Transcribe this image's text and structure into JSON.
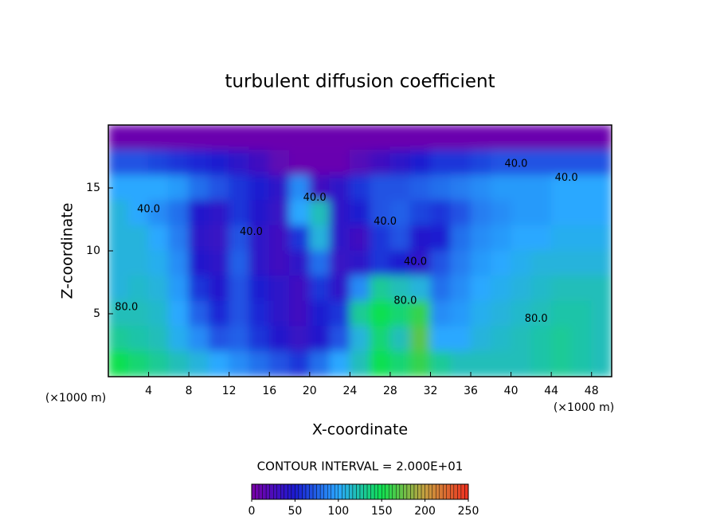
{
  "chart_data": {
    "type": "heatmap",
    "title": "turbulent diffusion coefficient",
    "xlabel": "X-coordinate",
    "ylabel": "Z-coordinate",
    "x_unit_left": "(×1000 m)",
    "x_unit_right": "(×1000 m)",
    "contour_interval": "CONTOUR INTERVAL = 2.000E+01",
    "xlim": [
      0,
      50
    ],
    "ylim": [
      0,
      20
    ],
    "xticks": [
      4,
      8,
      12,
      16,
      20,
      24,
      28,
      32,
      36,
      40,
      44,
      48
    ],
    "yticks": [
      5,
      10,
      15
    ],
    "x": [
      1,
      3,
      5,
      7,
      9,
      11,
      13,
      15,
      17,
      19,
      21,
      23,
      25,
      27,
      29,
      31,
      33,
      35,
      37,
      39,
      41,
      43,
      45,
      47,
      49
    ],
    "y": [
      19,
      17,
      15,
      13,
      11,
      9,
      7,
      5,
      3,
      1
    ],
    "z": [
      [
        8,
        8,
        8,
        8,
        8,
        8,
        8,
        8,
        8,
        8,
        8,
        8,
        8,
        8,
        8,
        8,
        8,
        8,
        8,
        8,
        8,
        8,
        8,
        8,
        8
      ],
      [
        70,
        70,
        65,
        60,
        55,
        50,
        40,
        30,
        15,
        10,
        10,
        10,
        20,
        30,
        40,
        50,
        60,
        60,
        65,
        70,
        70,
        70,
        70,
        70,
        70
      ],
      [
        100,
        100,
        100,
        95,
        80,
        70,
        60,
        50,
        40,
        90,
        30,
        40,
        60,
        70,
        70,
        75,
        80,
        85,
        90,
        95,
        95,
        95,
        100,
        100,
        100
      ],
      [
        110,
        100,
        90,
        80,
        45,
        40,
        60,
        45,
        35,
        100,
        120,
        40,
        50,
        70,
        75,
        65,
        60,
        70,
        85,
        90,
        95,
        95,
        100,
        100,
        100
      ],
      [
        110,
        110,
        100,
        85,
        40,
        35,
        70,
        40,
        30,
        60,
        110,
        40,
        30,
        60,
        70,
        45,
        50,
        80,
        90,
        95,
        100,
        100,
        105,
        105,
        105
      ],
      [
        110,
        110,
        105,
        90,
        45,
        40,
        75,
        40,
        30,
        40,
        80,
        35,
        40,
        60,
        50,
        40,
        70,
        85,
        95,
        100,
        105,
        110,
        110,
        110,
        110
      ],
      [
        110,
        115,
        110,
        95,
        60,
        45,
        70,
        50,
        40,
        30,
        60,
        40,
        90,
        130,
        120,
        110,
        80,
        90,
        100,
        105,
        110,
        115,
        120,
        120,
        120
      ],
      [
        120,
        120,
        115,
        100,
        75,
        55,
        70,
        55,
        40,
        30,
        50,
        60,
        130,
        150,
        140,
        160,
        90,
        95,
        105,
        110,
        115,
        120,
        125,
        125,
        120
      ],
      [
        130,
        125,
        120,
        105,
        90,
        70,
        75,
        60,
        45,
        35,
        45,
        70,
        110,
        140,
        120,
        170,
        100,
        100,
        110,
        115,
        120,
        125,
        130,
        125,
        120
      ],
      [
        150,
        140,
        130,
        120,
        110,
        100,
        90,
        80,
        70,
        60,
        80,
        100,
        120,
        150,
        140,
        160,
        130,
        120,
        120,
        120,
        120,
        125,
        130,
        125,
        120
      ]
    ],
    "clim": [
      0,
      250
    ],
    "cticks": [
      0,
      50,
      100,
      150,
      200,
      250
    ],
    "colormap": [
      "#7b00a8",
      "#1a1ad0",
      "#2aa8ff",
      "#10e050",
      "#c8a040",
      "#f03020"
    ],
    "annotations": [
      {
        "text": "40.0",
        "x": 4,
        "y": 13.3
      },
      {
        "text": "40.0",
        "x": 14.2,
        "y": 11.5
      },
      {
        "text": "80.0",
        "x": 1.8,
        "y": 5.5
      },
      {
        "text": "40.0",
        "x": 20.5,
        "y": 14.2
      },
      {
        "text": "40.0",
        "x": 27.5,
        "y": 12.3
      },
      {
        "text": "40.0",
        "x": 30.5,
        "y": 9.1
      },
      {
        "text": "80.0",
        "x": 29.5,
        "y": 6
      },
      {
        "text": "40.0",
        "x": 40.5,
        "y": 16.9
      },
      {
        "text": "40.0",
        "x": 45.5,
        "y": 15.8
      },
      {
        "text": "80.0",
        "x": 42.5,
        "y": 4.6
      }
    ]
  }
}
